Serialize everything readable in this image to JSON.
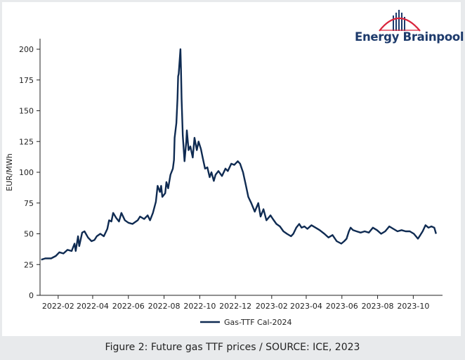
{
  "brand": {
    "name": "Energy Brainpool",
    "colors": {
      "navy": "#1d3a6b",
      "red": "#d9243c"
    }
  },
  "caption": "Figure 2: Future gas TTF prices / SOURCE: ICE, 2023",
  "chart_data": {
    "type": "line",
    "title": "",
    "xlabel": "",
    "ylabel": "EUR/MWh",
    "ylim": [
      0,
      200
    ],
    "yticks": [
      0,
      25,
      50,
      75,
      100,
      125,
      150,
      175,
      200
    ],
    "xlim": [
      "2022-01-01",
      "2023-11-20"
    ],
    "xticks": [
      "2022-02",
      "2022-04",
      "2022-06",
      "2022-08",
      "2022-10",
      "2022-12",
      "2023-02",
      "2023-04",
      "2023-06",
      "2023-08",
      "2023-10"
    ],
    "grid": false,
    "legend": "bottom-center",
    "series": [
      {
        "name": "Gas-TTF Cal-2024",
        "color": "#0f2b52",
        "points": [
          [
            "2022-01-03",
            29
          ],
          [
            "2022-01-10",
            30
          ],
          [
            "2022-01-20",
            30
          ],
          [
            "2022-01-28",
            32
          ],
          [
            "2022-02-03",
            35
          ],
          [
            "2022-02-10",
            34
          ],
          [
            "2022-02-17",
            37
          ],
          [
            "2022-02-24",
            36
          ],
          [
            "2022-03-01",
            42
          ],
          [
            "2022-03-03",
            36
          ],
          [
            "2022-03-07",
            48
          ],
          [
            "2022-03-09",
            40
          ],
          [
            "2022-03-14",
            51
          ],
          [
            "2022-03-18",
            52
          ],
          [
            "2022-03-24",
            47
          ],
          [
            "2022-03-30",
            44
          ],
          [
            "2022-04-04",
            45
          ],
          [
            "2022-04-08",
            48
          ],
          [
            "2022-04-14",
            50
          ],
          [
            "2022-04-20",
            48
          ],
          [
            "2022-04-26",
            54
          ],
          [
            "2022-04-29",
            61
          ],
          [
            "2022-05-03",
            60
          ],
          [
            "2022-05-06",
            67
          ],
          [
            "2022-05-11",
            63
          ],
          [
            "2022-05-16",
            60
          ],
          [
            "2022-05-20",
            67
          ],
          [
            "2022-05-26",
            61
          ],
          [
            "2022-06-01",
            59
          ],
          [
            "2022-06-08",
            58
          ],
          [
            "2022-06-14",
            60
          ],
          [
            "2022-06-17",
            61
          ],
          [
            "2022-06-21",
            64
          ],
          [
            "2022-06-28",
            62
          ],
          [
            "2022-07-04",
            65
          ],
          [
            "2022-07-08",
            61
          ],
          [
            "2022-07-13",
            67
          ],
          [
            "2022-07-18",
            76
          ],
          [
            "2022-07-21",
            89
          ],
          [
            "2022-07-25",
            84
          ],
          [
            "2022-07-27",
            89
          ],
          [
            "2022-07-29",
            80
          ],
          [
            "2022-08-03",
            83
          ],
          [
            "2022-08-05",
            92
          ],
          [
            "2022-08-08",
            87
          ],
          [
            "2022-08-12",
            98
          ],
          [
            "2022-08-16",
            103
          ],
          [
            "2022-08-18",
            110
          ],
          [
            "2022-08-19",
            128
          ],
          [
            "2022-08-22",
            140
          ],
          [
            "2022-08-24",
            160
          ],
          [
            "2022-08-25",
            178
          ],
          [
            "2022-08-26",
            180
          ],
          [
            "2022-08-29",
            200
          ],
          [
            "2022-08-30",
            183
          ],
          [
            "2022-08-31",
            160
          ],
          [
            "2022-09-02",
            130
          ],
          [
            "2022-09-05",
            109
          ],
          [
            "2022-09-08",
            125
          ],
          [
            "2022-09-09",
            134
          ],
          [
            "2022-09-12",
            118
          ],
          [
            "2022-09-15",
            121
          ],
          [
            "2022-09-19",
            112
          ],
          [
            "2022-09-22",
            128
          ],
          [
            "2022-09-26",
            118
          ],
          [
            "2022-09-29",
            125
          ],
          [
            "2022-10-03",
            119
          ],
          [
            "2022-10-06",
            112
          ],
          [
            "2022-10-10",
            103
          ],
          [
            "2022-10-14",
            104
          ],
          [
            "2022-10-18",
            96
          ],
          [
            "2022-10-21",
            100
          ],
          [
            "2022-10-25",
            93
          ],
          [
            "2022-10-28",
            98
          ],
          [
            "2022-11-02",
            101
          ],
          [
            "2022-11-08",
            97
          ],
          [
            "2022-11-14",
            103
          ],
          [
            "2022-11-18",
            101
          ],
          [
            "2022-11-24",
            107
          ],
          [
            "2022-11-29",
            106
          ],
          [
            "2022-12-05",
            109
          ],
          [
            "2022-12-09",
            107
          ],
          [
            "2022-12-14",
            100
          ],
          [
            "2022-12-19",
            89
          ],
          [
            "2022-12-23",
            80
          ],
          [
            "2022-12-28",
            75
          ],
          [
            "2023-01-03",
            68
          ],
          [
            "2023-01-09",
            75
          ],
          [
            "2023-01-13",
            64
          ],
          [
            "2023-01-18",
            70
          ],
          [
            "2023-01-23",
            61
          ],
          [
            "2023-01-30",
            65
          ],
          [
            "2023-02-03",
            62
          ],
          [
            "2023-02-09",
            58
          ],
          [
            "2023-02-15",
            56
          ],
          [
            "2023-02-21",
            52
          ],
          [
            "2023-02-27",
            50
          ],
          [
            "2023-03-06",
            48
          ],
          [
            "2023-03-10",
            50
          ],
          [
            "2023-03-15",
            55
          ],
          [
            "2023-03-20",
            58
          ],
          [
            "2023-03-24",
            55
          ],
          [
            "2023-03-29",
            56
          ],
          [
            "2023-04-03",
            54
          ],
          [
            "2023-04-10",
            57
          ],
          [
            "2023-04-17",
            55
          ],
          [
            "2023-04-24",
            53
          ],
          [
            "2023-05-02",
            50
          ],
          [
            "2023-05-09",
            47
          ],
          [
            "2023-05-16",
            49
          ],
          [
            "2023-05-23",
            44
          ],
          [
            "2023-05-31",
            42
          ],
          [
            "2023-06-05",
            44
          ],
          [
            "2023-06-09",
            46
          ],
          [
            "2023-06-13",
            52
          ],
          [
            "2023-06-16",
            55
          ],
          [
            "2023-06-20",
            53
          ],
          [
            "2023-06-26",
            52
          ],
          [
            "2023-07-03",
            51
          ],
          [
            "2023-07-10",
            52
          ],
          [
            "2023-07-17",
            51
          ],
          [
            "2023-07-24",
            55
          ],
          [
            "2023-07-31",
            53
          ],
          [
            "2023-08-07",
            50
          ],
          [
            "2023-08-14",
            52
          ],
          [
            "2023-08-21",
            56
          ],
          [
            "2023-08-28",
            54
          ],
          [
            "2023-09-04",
            52
          ],
          [
            "2023-09-11",
            53
          ],
          [
            "2023-09-18",
            52
          ],
          [
            "2023-09-25",
            52
          ],
          [
            "2023-10-02",
            50
          ],
          [
            "2023-10-09",
            46
          ],
          [
            "2023-10-13",
            49
          ],
          [
            "2023-10-17",
            52
          ],
          [
            "2023-10-22",
            57
          ],
          [
            "2023-10-27",
            55
          ],
          [
            "2023-11-01",
            56
          ],
          [
            "2023-11-06",
            55
          ],
          [
            "2023-11-09",
            50
          ]
        ]
      }
    ]
  }
}
